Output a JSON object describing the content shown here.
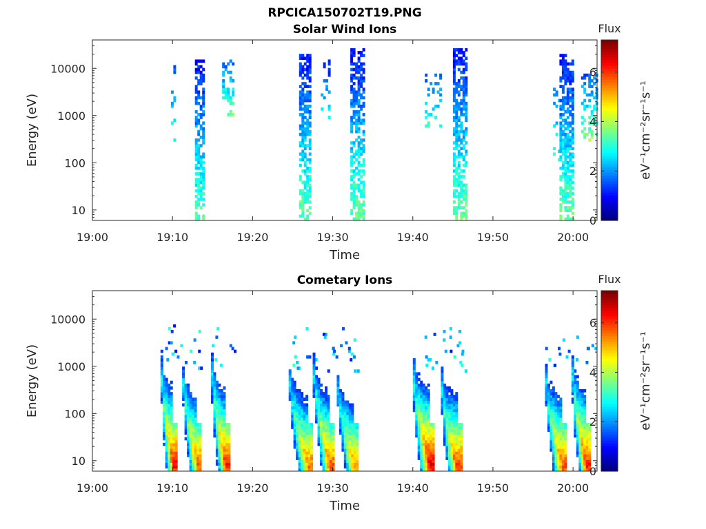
{
  "figure": {
    "filename": "RPCICA150702T19.PNG"
  },
  "chart_data": [
    {
      "type": "heatmap",
      "title": "Solar Wind Ions",
      "xlabel": "Time",
      "ylabel": "Energy (eV)",
      "y_scale": "log",
      "ylim": [
        6,
        40000
      ],
      "xlim_minutes": [
        0,
        63
      ],
      "x_ticks": [
        {
          "min": 0,
          "label": "19:00"
        },
        {
          "min": 10,
          "label": "19:10"
        },
        {
          "min": 20,
          "label": "19:20"
        },
        {
          "min": 30,
          "label": "19:30"
        },
        {
          "min": 40,
          "label": "19:40"
        },
        {
          "min": 50,
          "label": "19:50"
        },
        {
          "min": 60,
          "label": "20:00"
        }
      ],
      "y_ticks": [
        {
          "value": 10,
          "label": "10"
        },
        {
          "value": 100,
          "label": "100"
        },
        {
          "value": 1000,
          "label": "1000"
        },
        {
          "value": 10000,
          "label": "10000"
        }
      ],
      "colorbar": {
        "title": "Flux",
        "label": "eV⁻¹cm⁻²sr⁻¹s⁻¹",
        "range": [
          0,
          7.3
        ],
        "ticks": [
          {
            "value": 0,
            "label": "0"
          },
          {
            "value": 2,
            "label": "2"
          },
          {
            "value": 4,
            "label": "4"
          },
          {
            "value": 6,
            "label": "6"
          }
        ],
        "colormap": "jet"
      },
      "bursts": [
        {
          "t_start": 9.8,
          "t_end": 10.3,
          "e_low": 300,
          "e_high": 12000,
          "level_low": 1.5,
          "level_high": 3.0,
          "density": 0.25
        },
        {
          "t_start": 12.8,
          "t_end": 14.0,
          "e_low": 6,
          "e_high": 15000,
          "level_low": 1.0,
          "level_high": 3.4,
          "density": 0.65
        },
        {
          "t_start": 16.2,
          "t_end": 17.5,
          "e_low": 1000,
          "e_high": 16000,
          "level_low": 1.5,
          "level_high": 3.5,
          "density": 0.35
        },
        {
          "t_start": 25.8,
          "t_end": 27.2,
          "e_low": 6,
          "e_high": 20000,
          "level_low": 1.0,
          "level_high": 3.5,
          "density": 0.65
        },
        {
          "t_start": 28.5,
          "t_end": 29.5,
          "e_low": 800,
          "e_high": 16000,
          "level_low": 1.0,
          "level_high": 3.0,
          "density": 0.2
        },
        {
          "t_start": 32.2,
          "t_end": 33.9,
          "e_low": 6,
          "e_high": 25000,
          "level_low": 1.0,
          "level_high": 3.5,
          "density": 0.65
        },
        {
          "t_start": 41.5,
          "t_end": 43.5,
          "e_low": 600,
          "e_high": 8000,
          "level_low": 1.5,
          "level_high": 3.2,
          "density": 0.25
        },
        {
          "t_start": 45.0,
          "t_end": 46.6,
          "e_low": 6,
          "e_high": 25000,
          "level_low": 1.0,
          "level_high": 3.5,
          "density": 0.65
        },
        {
          "t_start": 57.5,
          "t_end": 58.2,
          "e_low": 100,
          "e_high": 8000,
          "level_low": 1.5,
          "level_high": 3.0,
          "density": 0.2
        },
        {
          "t_start": 58.3,
          "t_end": 59.8,
          "e_low": 6,
          "e_high": 20000,
          "level_low": 1.0,
          "level_high": 3.5,
          "density": 0.65
        },
        {
          "t_start": 61.0,
          "t_end": 63.0,
          "e_low": 300,
          "e_high": 8000,
          "level_low": 1.5,
          "level_high": 3.8,
          "density": 0.35
        }
      ]
    },
    {
      "type": "heatmap",
      "title": "Cometary Ions",
      "xlabel": "Time",
      "ylabel": "Energy (eV)",
      "y_scale": "log",
      "ylim": [
        6,
        40000
      ],
      "xlim_minutes": [
        0,
        63
      ],
      "x_ticks": [
        {
          "min": 0,
          "label": "19:00"
        },
        {
          "min": 10,
          "label": "19:10"
        },
        {
          "min": 20,
          "label": "19:20"
        },
        {
          "min": 30,
          "label": "19:30"
        },
        {
          "min": 40,
          "label": "19:40"
        },
        {
          "min": 50,
          "label": "19:50"
        },
        {
          "min": 60,
          "label": "20:00"
        }
      ],
      "y_ticks": [
        {
          "value": 10,
          "label": "10"
        },
        {
          "value": 100,
          "label": "100"
        },
        {
          "value": 1000,
          "label": "1000"
        },
        {
          "value": 10000,
          "label": "10000"
        }
      ],
      "colorbar": {
        "title": "Flux",
        "label": "eV⁻¹cm⁻²sr⁻¹s⁻¹",
        "range": [
          0,
          7.3
        ],
        "ticks": [
          {
            "value": 0,
            "label": "0"
          },
          {
            "value": 2,
            "label": "2"
          },
          {
            "value": 4,
            "label": "4"
          },
          {
            "value": 6,
            "label": "6"
          }
        ],
        "colormap": "jet"
      },
      "dispersions": [
        {
          "t_peak": 10.0,
          "t_start": 8.5,
          "e_top": 500,
          "peak_level": 6.4
        },
        {
          "t_peak": 13.0,
          "t_start": 11.2,
          "e_top": 400,
          "peak_level": 5.8
        },
        {
          "t_peak": 16.5,
          "t_start": 14.8,
          "e_top": 600,
          "peak_level": 6.2
        },
        {
          "t_peak": 26.8,
          "t_start": 24.5,
          "e_top": 400,
          "peak_level": 5.6
        },
        {
          "t_peak": 29.5,
          "t_start": 27.5,
          "e_top": 600,
          "peak_level": 5.8
        },
        {
          "t_peak": 32.5,
          "t_start": 30.5,
          "e_top": 300,
          "peak_level": 5.4
        },
        {
          "t_peak": 42.0,
          "t_start": 40.0,
          "e_top": 400,
          "peak_level": 6.6
        },
        {
          "t_peak": 45.3,
          "t_start": 43.5,
          "e_top": 300,
          "peak_level": 6.0
        },
        {
          "t_peak": 58.5,
          "t_start": 56.5,
          "e_top": 400,
          "peak_level": 5.8
        },
        {
          "t_peak": 61.5,
          "t_start": 59.8,
          "e_top": 600,
          "peak_level": 6.2
        }
      ]
    }
  ]
}
